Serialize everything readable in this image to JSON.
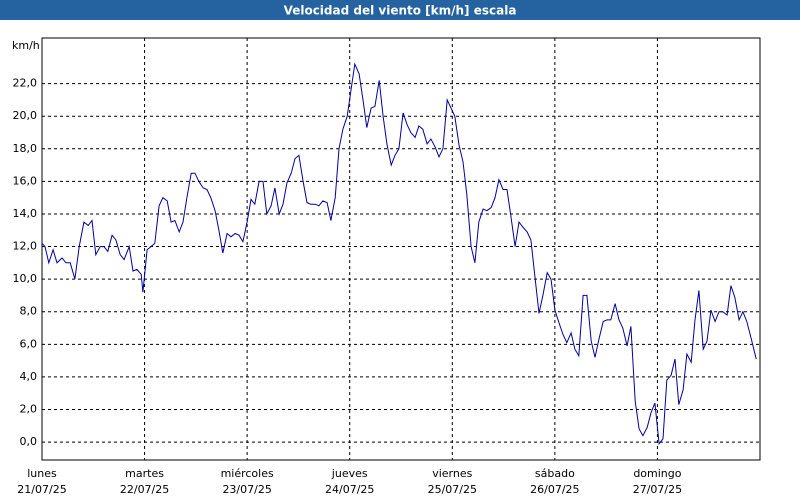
{
  "chart_data": {
    "type": "line",
    "title": "Velocidad del viento [km/h] escala",
    "ylabel": "km/h",
    "xlim": [
      0,
      168
    ],
    "ylim": [
      -1.1,
      24.8
    ],
    "grid": true,
    "color": "#0000a0",
    "xticks": [
      {
        "value": 0,
        "label": "lunes",
        "date": "21/07/25"
      },
      {
        "value": 24,
        "label": "martes",
        "date": "22/07/25"
      },
      {
        "value": 48,
        "label": "miércoles",
        "date": "23/07/25"
      },
      {
        "value": 72,
        "label": "jueves",
        "date": "24/07/25"
      },
      {
        "value": 96,
        "label": "viernes",
        "date": "25/07/25"
      },
      {
        "value": 120,
        "label": "sábado",
        "date": "26/07/25"
      },
      {
        "value": 144,
        "label": "domingo",
        "date": "27/07/25"
      }
    ],
    "yticks": [
      {
        "value": 0,
        "label": "0,0"
      },
      {
        "value": 2,
        "label": "2,0"
      },
      {
        "value": 4,
        "label": "4,0"
      },
      {
        "value": 6,
        "label": "6,0"
      },
      {
        "value": 8,
        "label": "8,0"
      },
      {
        "value": 10,
        "label": "10,0"
      },
      {
        "value": 12,
        "label": "12,0"
      },
      {
        "value": 14,
        "label": "14,0"
      },
      {
        "value": 16,
        "label": "16,0"
      },
      {
        "value": 18,
        "label": "18,0"
      },
      {
        "value": 20,
        "label": "20,0"
      },
      {
        "value": 22,
        "label": "22,0"
      }
    ],
    "x": [
      0.0,
      0.7,
      1.6,
      2.6,
      3.5,
      4.7,
      5.6,
      6.6,
      7.7,
      8.7,
      9.8,
      10.8,
      11.7,
      12.6,
      13.6,
      14.5,
      15.4,
      16.4,
      17.3,
      18.3,
      19.2,
      20.4,
      21.3,
      22.2,
      23.2,
      23.6,
      24.6,
      25.5,
      26.4,
      27.4,
      28.3,
      29.3,
      30.2,
      31.1,
      32.1,
      33.0,
      33.9,
      34.9,
      35.8,
      36.7,
      37.7,
      38.6,
      39.5,
      40.5,
      41.4,
      42.3,
      43.3,
      44.2,
      45.2,
      46.1,
      47.0,
      48.0,
      48.9,
      49.8,
      50.8,
      51.7,
      52.6,
      53.6,
      54.5,
      55.5,
      56.4,
      57.3,
      58.3,
      59.2,
      60.1,
      61.1,
      62.0,
      62.9,
      63.9,
      64.8,
      65.7,
      66.7,
      67.6,
      68.6,
      69.5,
      70.4,
      71.4,
      72.3,
      73.2,
      74.2,
      75.1,
      76.0,
      77.0,
      77.9,
      78.9,
      79.8,
      80.7,
      81.7,
      82.6,
      83.5,
      84.5,
      85.4,
      86.3,
      87.3,
      88.2,
      89.1,
      90.1,
      91.0,
      92.0,
      92.9,
      93.8,
      94.8,
      95.7,
      96.6,
      97.6,
      98.5,
      99.4,
      100.4,
      101.3,
      102.2,
      103.2,
      104.1,
      105.1,
      106.0,
      106.9,
      107.9,
      108.8,
      109.7,
      110.7,
      111.6,
      112.5,
      113.5,
      114.4,
      115.4,
      116.3,
      117.2,
      118.2,
      119.1,
      120.0,
      121.0,
      121.9,
      122.8,
      123.8,
      124.7,
      125.6,
      126.6,
      127.5,
      128.5,
      129.4,
      130.3,
      131.3,
      132.2,
      133.1,
      134.1,
      135.0,
      135.9,
      136.9,
      137.8,
      138.8,
      139.7,
      140.6,
      141.6,
      142.5,
      143.4,
      144.4,
      145.3,
      146.2,
      147.2,
      148.1,
      149.0,
      150.0,
      150.9,
      151.9,
      152.8,
      153.7,
      154.7,
      155.6,
      156.5,
      157.5,
      158.4,
      159.3,
      160.3,
      161.2,
      162.1,
      163.1,
      164.0,
      164.9,
      165.9,
      167.1
    ],
    "values": [
      12.2,
      12.0,
      11.0,
      11.8,
      11.0,
      11.3,
      11.0,
      11.0,
      10.0,
      12.0,
      13.5,
      13.3,
      13.6,
      11.5,
      12.0,
      12.0,
      11.7,
      12.7,
      12.4,
      11.5,
      11.2,
      12.0,
      10.5,
      10.6,
      10.3,
      9.2,
      11.8,
      12.0,
      12.2,
      14.5,
      15.0,
      14.8,
      13.5,
      13.6,
      12.9,
      13.5,
      15.0,
      16.5,
      16.5,
      16.0,
      15.6,
      15.5,
      15.0,
      14.2,
      13.0,
      11.6,
      12.8,
      12.6,
      12.8,
      12.7,
      12.3,
      13.5,
      14.9,
      14.6,
      16.0,
      16.0,
      14.0,
      14.5,
      15.6,
      14.0,
      14.6,
      15.9,
      16.5,
      17.4,
      17.6,
      16.0,
      14.7,
      14.6,
      14.6,
      14.5,
      14.8,
      14.7,
      13.6,
      15.0,
      18.0,
      19.2,
      20.0,
      21.6,
      23.2,
      22.6,
      21.0,
      19.3,
      20.5,
      20.6,
      22.2,
      20.0,
      18.3,
      17.0,
      17.6,
      18.0,
      20.2,
      19.5,
      19.0,
      18.7,
      19.4,
      19.2,
      18.3,
      18.6,
      18.1,
      17.5,
      18.0,
      21.0,
      20.5,
      20.0,
      18.2,
      17.2,
      15.2,
      12.0,
      11.0,
      13.5,
      14.3,
      14.2,
      14.4,
      15.0,
      16.1,
      15.5,
      15.5,
      13.9,
      12.0,
      13.5,
      13.2,
      12.9,
      12.4,
      10.0,
      7.9,
      9.0,
      10.4,
      10.0,
      8.1,
      7.3,
      6.6,
      6.1,
      6.7,
      5.7,
      5.3,
      9.0,
      9.0,
      6.2,
      5.2,
      6.3,
      7.4,
      7.5,
      7.5,
      8.5,
      7.5,
      7.0,
      5.9,
      7.1,
      2.5,
      0.8,
      0.4,
      0.9,
      1.8,
      2.4,
      -0.1,
      0.2,
      3.8,
      4.1,
      5.1,
      2.3,
      3.2,
      5.4,
      4.9,
      7.5,
      9.3,
      5.7,
      6.2,
      8.1,
      7.4,
      8.0,
      8.0,
      7.8,
      9.6,
      8.9,
      7.5,
      8.0,
      7.4,
      6.4,
      5.1
    ]
  }
}
